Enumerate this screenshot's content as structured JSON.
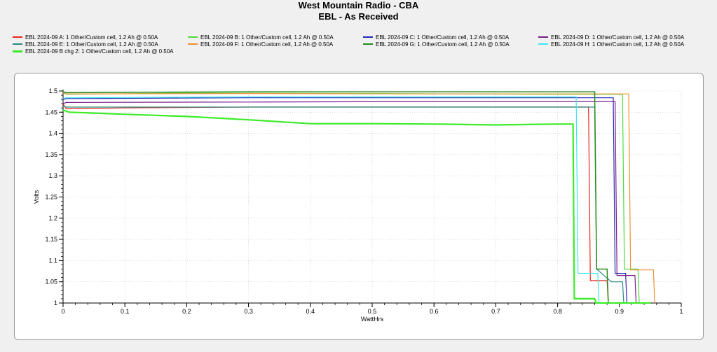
{
  "title": "West Mountain Radio - CBA",
  "subtitle": "EBL - As Received",
  "chart_data": {
    "type": "line",
    "xlabel": "WattHrs",
    "ylabel": "Volts",
    "xlim": [
      0,
      1
    ],
    "ylim": [
      1,
      1.5
    ],
    "x_ticks": [
      "0",
      "0.1",
      "0.2",
      "0.3",
      "0.4",
      "0.5",
      "0.6",
      "0.7",
      "0.8",
      "0.9",
      "1"
    ],
    "y_ticks": [
      "1",
      "1.05",
      "1.1",
      "1.15",
      "1.2",
      "1.25",
      "1.3",
      "1.35",
      "1.4",
      "1.45",
      "1.5"
    ],
    "grid": true,
    "legend_position": "top",
    "series": [
      {
        "name": "EBL 2024-09 A: 1 Other/Custom cell, 1.2 Ah @ 0.50A",
        "color": "#e8281e",
        "width": 1.2,
        "points": [
          [
            0,
            1.47
          ],
          [
            0.005,
            1.458
          ],
          [
            0.1,
            1.46
          ],
          [
            0.3,
            1.462
          ],
          [
            0.6,
            1.462
          ],
          [
            0.85,
            1.462
          ],
          [
            0.853,
            1.053
          ],
          [
            0.88,
            1.053
          ],
          [
            0.882,
            1.0
          ]
        ]
      },
      {
        "name": "EBL 2024-09 B: 1 Other/Custom cell, 1.2 Ah @ 0.50A",
        "color": "#4fdc3c",
        "width": 1.2,
        "points": [
          [
            0,
            1.5
          ],
          [
            0.005,
            1.492
          ],
          [
            0.2,
            1.495
          ],
          [
            0.5,
            1.494
          ],
          [
            0.8,
            1.492
          ],
          [
            0.905,
            1.492
          ],
          [
            0.908,
            1.08
          ],
          [
            0.93,
            1.08
          ],
          [
            0.932,
            1.0
          ]
        ]
      },
      {
        "name": "EBL 2024-09 C: 1 Other/Custom cell, 1.2 Ah @ 0.50A",
        "color": "#2828b4",
        "width": 1.2,
        "points": [
          [
            0,
            1.48
          ],
          [
            0.005,
            1.482
          ],
          [
            0.3,
            1.484
          ],
          [
            0.6,
            1.484
          ],
          [
            0.89,
            1.484
          ],
          [
            0.893,
            1.07
          ],
          [
            0.91,
            1.07
          ],
          [
            0.912,
            1.0
          ]
        ]
      },
      {
        "name": "EBL 2024-09 D: 1 Other/Custom cell, 1.2 Ah @ 0.50A",
        "color": "#7a1e8c",
        "width": 1.2,
        "points": [
          [
            0,
            1.47
          ],
          [
            0.005,
            1.473
          ],
          [
            0.3,
            1.474
          ],
          [
            0.6,
            1.475
          ],
          [
            0.893,
            1.475
          ],
          [
            0.896,
            1.065
          ],
          [
            0.925,
            1.065
          ],
          [
            0.927,
            1.0
          ]
        ]
      },
      {
        "name": "EBL 2024-09 E: 1 Other/Custom cell, 1.2 Ah @ 0.50A",
        "color": "#2a8a84",
        "width": 1.2,
        "points": [
          [
            0,
            1.465
          ],
          [
            0.005,
            1.462
          ],
          [
            0.3,
            1.462
          ],
          [
            0.6,
            1.462
          ],
          [
            0.86,
            1.462
          ],
          [
            0.863,
            1.08
          ],
          [
            0.887,
            1.05
          ],
          [
            0.905,
            1.05
          ],
          [
            0.907,
            1.0
          ]
        ]
      },
      {
        "name": "EBL 2024-09 F: 1 Other/Custom cell, 1.2 Ah @ 0.50A",
        "color": "#ee9030",
        "width": 1.2,
        "points": [
          [
            0,
            1.495
          ],
          [
            0.005,
            1.493
          ],
          [
            0.3,
            1.494
          ],
          [
            0.6,
            1.493
          ],
          [
            0.915,
            1.493
          ],
          [
            0.918,
            1.078
          ],
          [
            0.955,
            1.078
          ],
          [
            0.957,
            1.0
          ]
        ]
      },
      {
        "name": "EBL 2024-09 G: 1 Other/Custom cell, 1.2 Ah @ 0.50A",
        "color": "#268a1e",
        "width": 1.5,
        "points": [
          [
            0,
            1.498
          ],
          [
            0.005,
            1.496
          ],
          [
            0.3,
            1.498
          ],
          [
            0.6,
            1.498
          ],
          [
            0.86,
            1.498
          ],
          [
            0.863,
            1.08
          ],
          [
            0.88,
            1.08
          ],
          [
            0.882,
            1.0
          ]
        ]
      },
      {
        "name": "EBL 2024-09 H: 1 Other/Custom cell, 1.2 Ah @ 0.50A",
        "color": "#38e8f0",
        "width": 1.2,
        "points": [
          [
            0,
            1.482
          ],
          [
            0.005,
            1.484
          ],
          [
            0.3,
            1.486
          ],
          [
            0.6,
            1.486
          ],
          [
            0.83,
            1.486
          ],
          [
            0.833,
            1.07
          ],
          [
            0.865,
            1.07
          ],
          [
            0.867,
            1.0
          ]
        ]
      },
      {
        "name": "EBL 2024-09 B chg 2: 1 Other/Custom cell, 1.2 Ah @ 0.50A",
        "color": "#3cec28",
        "width": 2.2,
        "points": [
          [
            0,
            1.455
          ],
          [
            0.01,
            1.45
          ],
          [
            0.1,
            1.445
          ],
          [
            0.2,
            1.44
          ],
          [
            0.3,
            1.432
          ],
          [
            0.4,
            1.423
          ],
          [
            0.5,
            1.423
          ],
          [
            0.6,
            1.422
          ],
          [
            0.7,
            1.42
          ],
          [
            0.75,
            1.421
          ],
          [
            0.8,
            1.422
          ],
          [
            0.825,
            1.422
          ],
          [
            0.827,
            1.01
          ],
          [
            0.86,
            1.01
          ],
          [
            0.862,
            1.0
          ],
          [
            0.95,
            1.0
          ]
        ]
      }
    ]
  }
}
